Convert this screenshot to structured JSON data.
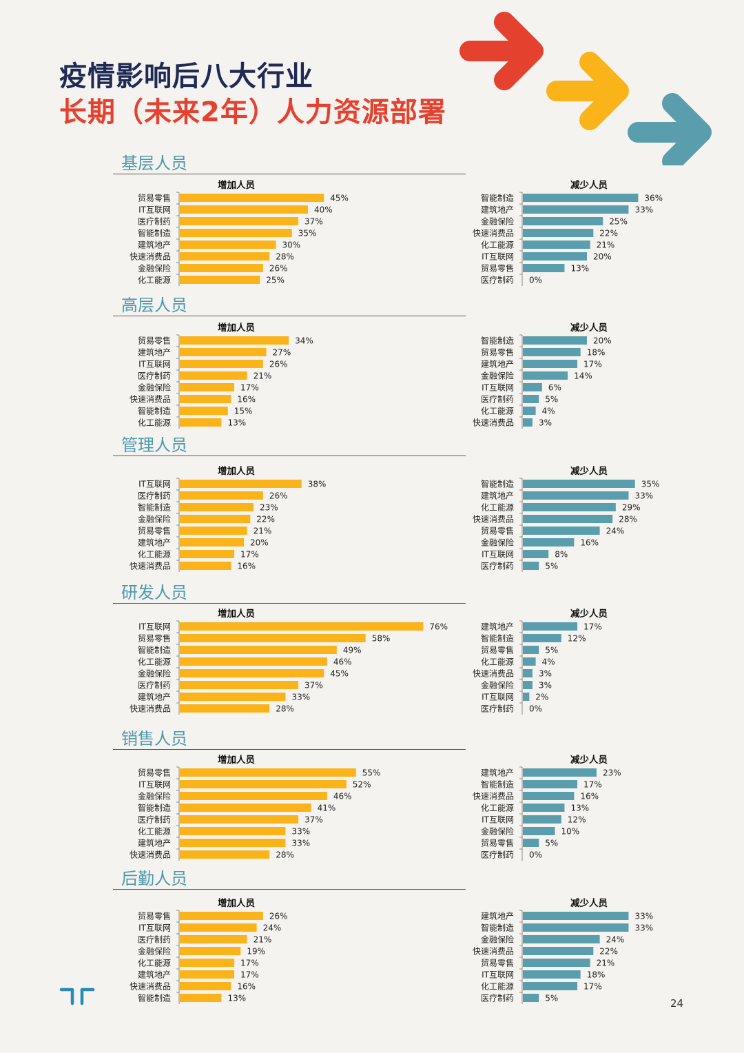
{
  "title": {
    "line1": "疫情影响后八大行业",
    "line2": "长期（未来2年）人力资源部署"
  },
  "page_number": "24",
  "colors": {
    "increase": "#fbb31a",
    "decrease": "#5a9eae",
    "section_title": "#4d9aac",
    "title_dark": "#1f2a55",
    "title_red": "#e5412f",
    "arrow_red": "#e5412f",
    "arrow_yellow": "#fbb31a",
    "arrow_blue": "#5a9eae"
  },
  "sections": [
    {
      "title": "基层人员"
    },
    {
      "title": "高层人员"
    },
    {
      "title": "管理人员"
    },
    {
      "title": "研发人员"
    },
    {
      "title": "销售人员"
    },
    {
      "title": "后勤人员"
    }
  ],
  "chart_data": [
    {
      "type": "bar",
      "title": "增加人员",
      "categories": [
        "贸易零售",
        "IT互联网",
        "医疗制药",
        "智能制造",
        "建筑地产",
        "快速消费品",
        "金融保险",
        "化工能源"
      ],
      "values": [
        45,
        40,
        37,
        35,
        30,
        28,
        26,
        25
      ],
      "value_format": "percent"
    },
    {
      "type": "bar",
      "title": "减少人员",
      "categories": [
        "智能制造",
        "建筑地产",
        "金融保险",
        "快速消费品",
        "化工能源",
        "IT互联网",
        "贸易零售",
        "医疗制药"
      ],
      "values": [
        36,
        33,
        25,
        22,
        21,
        20,
        13,
        0
      ],
      "value_format": "percent"
    },
    {
      "type": "bar",
      "title": "增加人员",
      "categories": [
        "贸易零售",
        "建筑地产",
        "IT互联网",
        "医疗制药",
        "金融保险",
        "快速消费品",
        "智能制造",
        "化工能源"
      ],
      "values": [
        34,
        27,
        26,
        21,
        17,
        16,
        15,
        13
      ],
      "value_format": "percent"
    },
    {
      "type": "bar",
      "title": "减少人员",
      "categories": [
        "智能制造",
        "贸易零售",
        "建筑地产",
        "金融保险",
        "IT互联网",
        "医疗制药",
        "化工能源",
        "快速消费品"
      ],
      "values": [
        20,
        18,
        17,
        14,
        6,
        5,
        4,
        3
      ],
      "value_format": "percent"
    },
    {
      "type": "bar",
      "title": "增加人员",
      "categories": [
        "IT互联网",
        "医疗制药",
        "智能制造",
        "金融保险",
        "贸易零售",
        "建筑地产",
        "化工能源",
        "快速消费品"
      ],
      "values": [
        38,
        26,
        23,
        22,
        21,
        20,
        17,
        16
      ],
      "value_format": "percent"
    },
    {
      "type": "bar",
      "title": "减少人员",
      "categories": [
        "智能制造",
        "建筑地产",
        "化工能源",
        "快速消费品",
        "贸易零售",
        "金融保险",
        "IT互联网",
        "医疗制药"
      ],
      "values": [
        35,
        33,
        29,
        28,
        24,
        16,
        8,
        5
      ],
      "value_format": "percent"
    },
    {
      "type": "bar",
      "title": "增加人员",
      "categories": [
        "IT互联网",
        "贸易零售",
        "智能制造",
        "化工能源",
        "金融保险",
        "医疗制药",
        "建筑地产",
        "快速消费品"
      ],
      "values": [
        76,
        58,
        49,
        46,
        45,
        37,
        33,
        28
      ],
      "value_format": "percent"
    },
    {
      "type": "bar",
      "title": "减少人员",
      "categories": [
        "建筑地产",
        "智能制造",
        "贸易零售",
        "化工能源",
        "快速消费品",
        "金融保险",
        "IT互联网",
        "医疗制药"
      ],
      "values": [
        17,
        12,
        5,
        4,
        3,
        3,
        2,
        0
      ],
      "value_format": "percent"
    },
    {
      "type": "bar",
      "title": "增加人员",
      "categories": [
        "贸易零售",
        "IT互联网",
        "金融保险",
        "智能制造",
        "医疗制药",
        "化工能源",
        "建筑地产",
        "快速消费品"
      ],
      "values": [
        55,
        52,
        46,
        41,
        37,
        33,
        33,
        28
      ],
      "value_format": "percent"
    },
    {
      "type": "bar",
      "title": "减少人员",
      "categories": [
        "建筑地产",
        "智能制造",
        "快速消费品",
        "化工能源",
        "IT互联网",
        "金融保险",
        "贸易零售",
        "医疗制药"
      ],
      "values": [
        23,
        17,
        16,
        13,
        12,
        10,
        5,
        0
      ],
      "value_format": "percent"
    },
    {
      "type": "bar",
      "title": "增加人员",
      "categories": [
        "贸易零售",
        "IT互联网",
        "医疗制药",
        "金融保险",
        "化工能源",
        "建筑地产",
        "快速消费品",
        "智能制造"
      ],
      "values": [
        26,
        24,
        21,
        19,
        17,
        17,
        16,
        13
      ],
      "value_format": "percent"
    },
    {
      "type": "bar",
      "title": "减少人员",
      "categories": [
        "建筑地产",
        "智能制造",
        "金融保险",
        "快速消费品",
        "贸易零售",
        "IT互联网",
        "化工能源",
        "医疗制药"
      ],
      "values": [
        33,
        33,
        24,
        22,
        21,
        18,
        17,
        5
      ],
      "value_format": "percent"
    }
  ]
}
